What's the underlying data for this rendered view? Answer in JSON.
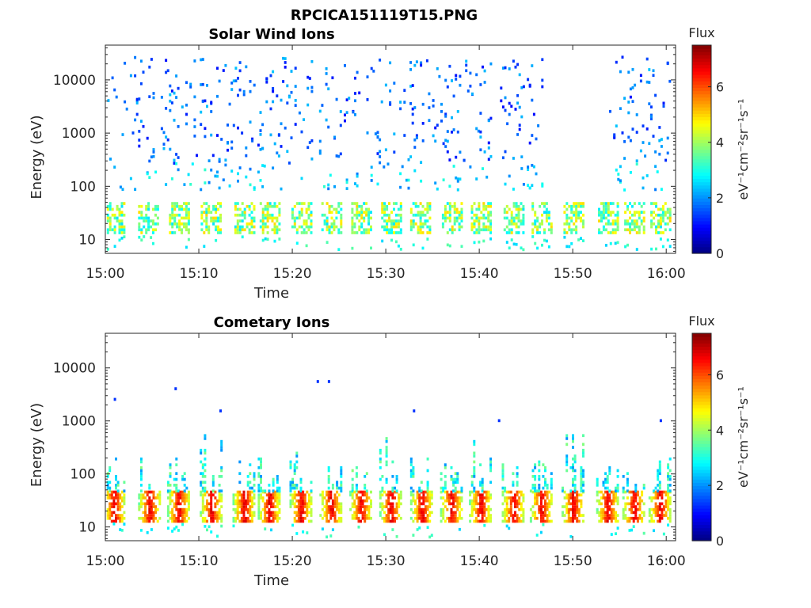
{
  "figure_title": "RPCICA151119T15.PNG",
  "chart_data": [
    {
      "type": "heatmap",
      "title": "Solar Wind Ions",
      "xlabel": "Time",
      "ylabel": "Energy (eV)",
      "x_ticks": [
        "15:00",
        "15:10",
        "15:20",
        "15:30",
        "15:40",
        "15:50",
        "16:00"
      ],
      "x_range_minutes": [
        0,
        61
      ],
      "y_scale": "log",
      "y_ticks": [
        "10",
        "100",
        "1000",
        "10000"
      ],
      "y_tick_values": [
        10,
        100,
        1000,
        10000
      ],
      "y_range": [
        5.5,
        45000
      ],
      "colorbar": {
        "title": "Flux",
        "label": "eV⁻¹cm⁻²sr⁻¹s⁻¹",
        "range": [
          0,
          7.5
        ],
        "ticks": [
          "0",
          "2",
          "4",
          "6"
        ],
        "tick_values": [
          0,
          2,
          4,
          6
        ],
        "colormap": "jet"
      },
      "features": [
        {
          "description": "Sparse scattered high-energy counts",
          "energy_range": [
            100,
            20000
          ],
          "time_range": [
            "15:01",
            "16:00"
          ],
          "flux_range": [
            1,
            2.5
          ]
        },
        {
          "description": "Low-energy bursts at ~10-40 eV",
          "energy_range": [
            8,
            45
          ],
          "time_range": [
            "15:00",
            "16:00"
          ],
          "flux_range": [
            2.5,
            5
          ]
        }
      ]
    },
    {
      "type": "heatmap",
      "title": "Cometary Ions",
      "xlabel": "Time",
      "ylabel": "Energy (eV)",
      "x_ticks": [
        "15:00",
        "15:10",
        "15:20",
        "15:30",
        "15:40",
        "15:50",
        "16:00"
      ],
      "x_range_minutes": [
        0,
        61
      ],
      "y_scale": "log",
      "y_ticks": [
        "10",
        "100",
        "1000",
        "10000"
      ],
      "y_tick_values": [
        10,
        100,
        1000,
        10000
      ],
      "y_range": [
        5.5,
        45000
      ],
      "colorbar": {
        "title": "Flux",
        "label": "eV⁻¹cm⁻²sr⁻¹s⁻¹",
        "range": [
          0,
          7.5
        ],
        "ticks": [
          "0",
          "2",
          "4",
          "6"
        ],
        "tick_values": [
          0,
          2,
          4,
          6
        ],
        "colormap": "jet"
      },
      "bursts_minutes": [
        0.9,
        4.7,
        7.8,
        11.3,
        14.8,
        17.5,
        20.9,
        24.1,
        27.3,
        30.5,
        33.8,
        37.0,
        40.1,
        43.6,
        46.6,
        50.0,
        53.7,
        56.5,
        59.3
      ],
      "features": [
        {
          "description": "Intense periodic low-energy bursts",
          "energy_range": [
            12,
            40
          ],
          "flux_range": [
            4.5,
            7
          ]
        },
        {
          "description": "Dispersed tails extending upward",
          "energy_range": [
            40,
            700
          ],
          "flux_range": [
            2,
            4
          ]
        }
      ]
    }
  ]
}
